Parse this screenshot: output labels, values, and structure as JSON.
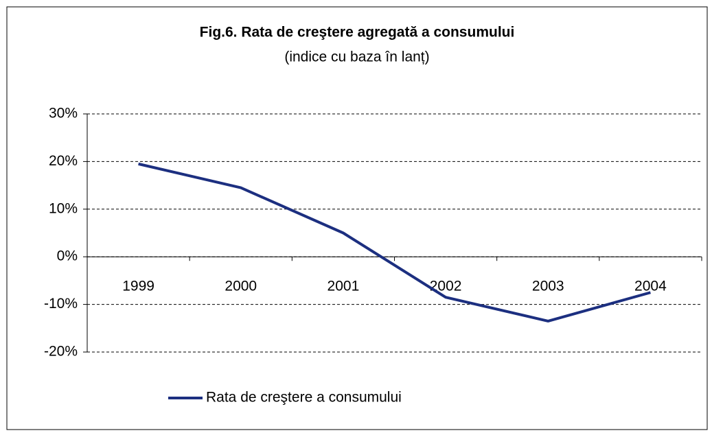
{
  "chart_data": {
    "type": "line",
    "title": "Fig.6. Rata de creştere agregată a consumului",
    "subtitle": "(indice cu baza în lanț)",
    "categories": [
      "1999",
      "2000",
      "2001",
      "2002",
      "2003",
      "2004"
    ],
    "series": [
      {
        "name": "Rata de creştere a consumului",
        "color": "#1c2f80",
        "values": [
          19.5,
          14.5,
          5,
          -8.5,
          -13.5,
          -7.5
        ]
      }
    ],
    "ylim": [
      -20,
      30
    ],
    "yticks": [
      {
        "value": -20,
        "label": "-20%"
      },
      {
        "value": -10,
        "label": "-10%"
      },
      {
        "value": 0,
        "label": "0%"
      },
      {
        "value": 10,
        "label": "10%"
      },
      {
        "value": 20,
        "label": "20%"
      },
      {
        "value": 30,
        "label": "30%"
      }
    ],
    "grid": true,
    "legend": "bottom"
  }
}
